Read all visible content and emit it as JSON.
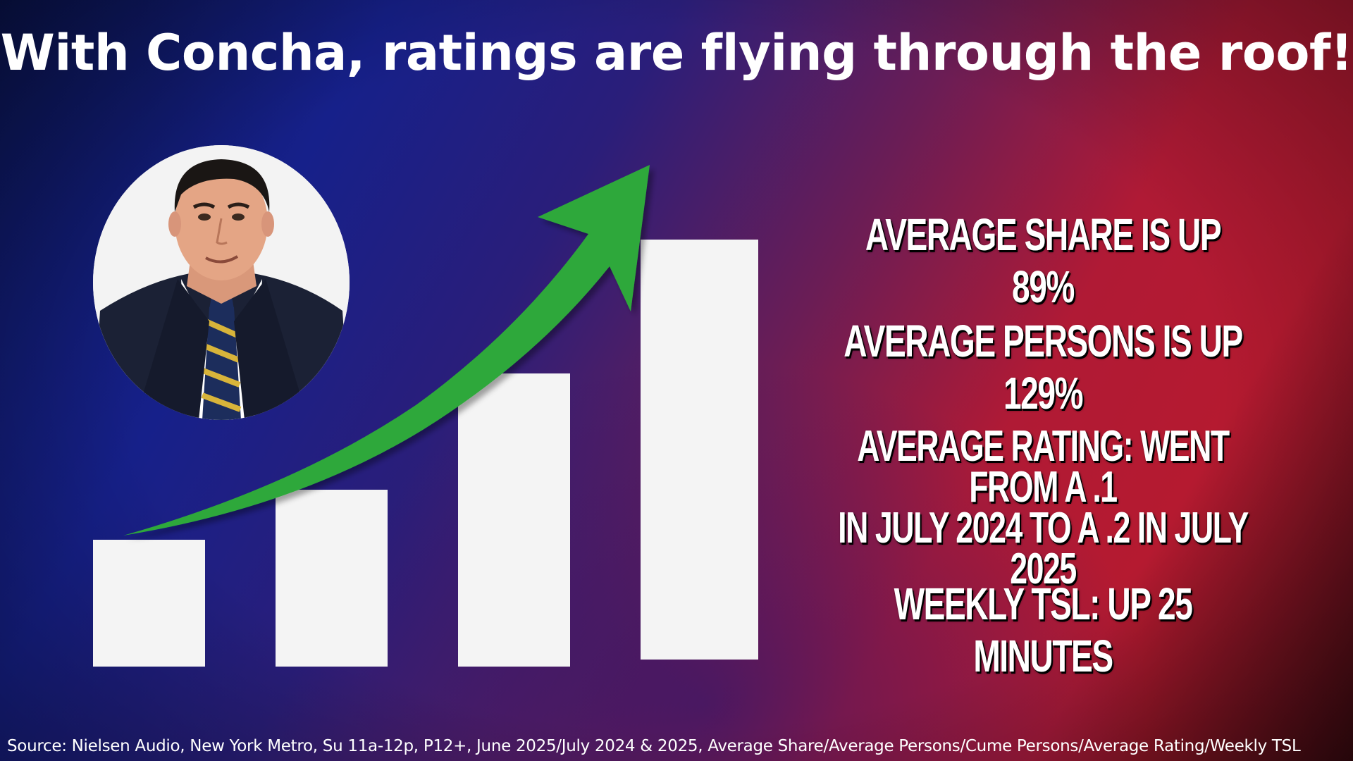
{
  "headline": "With Concha, ratings are flying through the roof!",
  "stats": [
    "AVERAGE SHARE IS UP 89%",
    "AVERAGE PERSONS IS UP 129%",
    "AVERAGE RATING: WENT FROM A .1 IN JULY 2024 TO A .2 IN JULY 2025",
    "WEEKLY TSL: UP 25 MINUTES"
  ],
  "stat_3_lines": [
    "AVERAGE RATING: WENT FROM A .1",
    "IN JULY 2024 TO A .2 IN JULY 2025"
  ],
  "source": "Source: Nielsen Audio, New York Metro, Su 11a-12p, P12+, June 2025/July 2024 & 2025, Average Share/Average Persons/Cume Persons/Average Rating/Weekly TSL",
  "graphic": {
    "bar_relative_heights": [
      0.3,
      0.41,
      0.69,
      1.0
    ],
    "bar_color": "#f4f4f4",
    "arrow_color": "#2da83a",
    "arrow_icon": "trend-up-arrow-icon"
  }
}
